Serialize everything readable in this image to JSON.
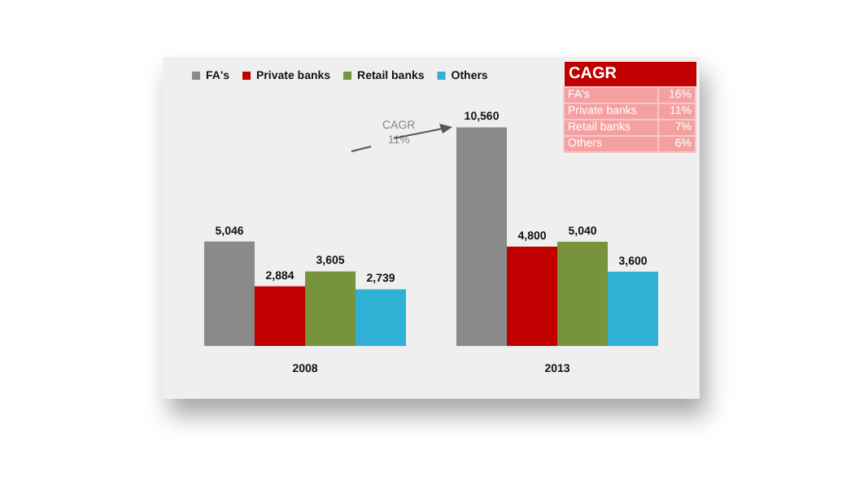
{
  "chart_data": {
    "type": "bar",
    "categories": [
      "2008",
      "2013"
    ],
    "series": [
      {
        "name": "FA's",
        "color": "#8a8a8a",
        "values": [
          5046,
          10560
        ],
        "value_labels": [
          "5,046",
          "10,560"
        ]
      },
      {
        "name": "Private banks",
        "color": "#c00000",
        "values": [
          2884,
          4800
        ],
        "value_labels": [
          "2,884",
          "4,800"
        ]
      },
      {
        "name": "Retail banks",
        "color": "#77933c",
        "values": [
          3605,
          5040
        ],
        "value_labels": [
          "3,605",
          "5,040"
        ]
      },
      {
        "name": "Others",
        "color": "#31b0d5",
        "values": [
          2739,
          3600
        ],
        "value_labels": [
          "2,739",
          "3,600"
        ]
      }
    ],
    "legend": "top left",
    "grid": false,
    "annotations": [
      "CAGR\n11%",
      "CAGR",
      "FA's",
      "16%",
      "Private banks",
      "11%",
      "Retail banks",
      "7%",
      "Others",
      "6%"
    ]
  }
}
